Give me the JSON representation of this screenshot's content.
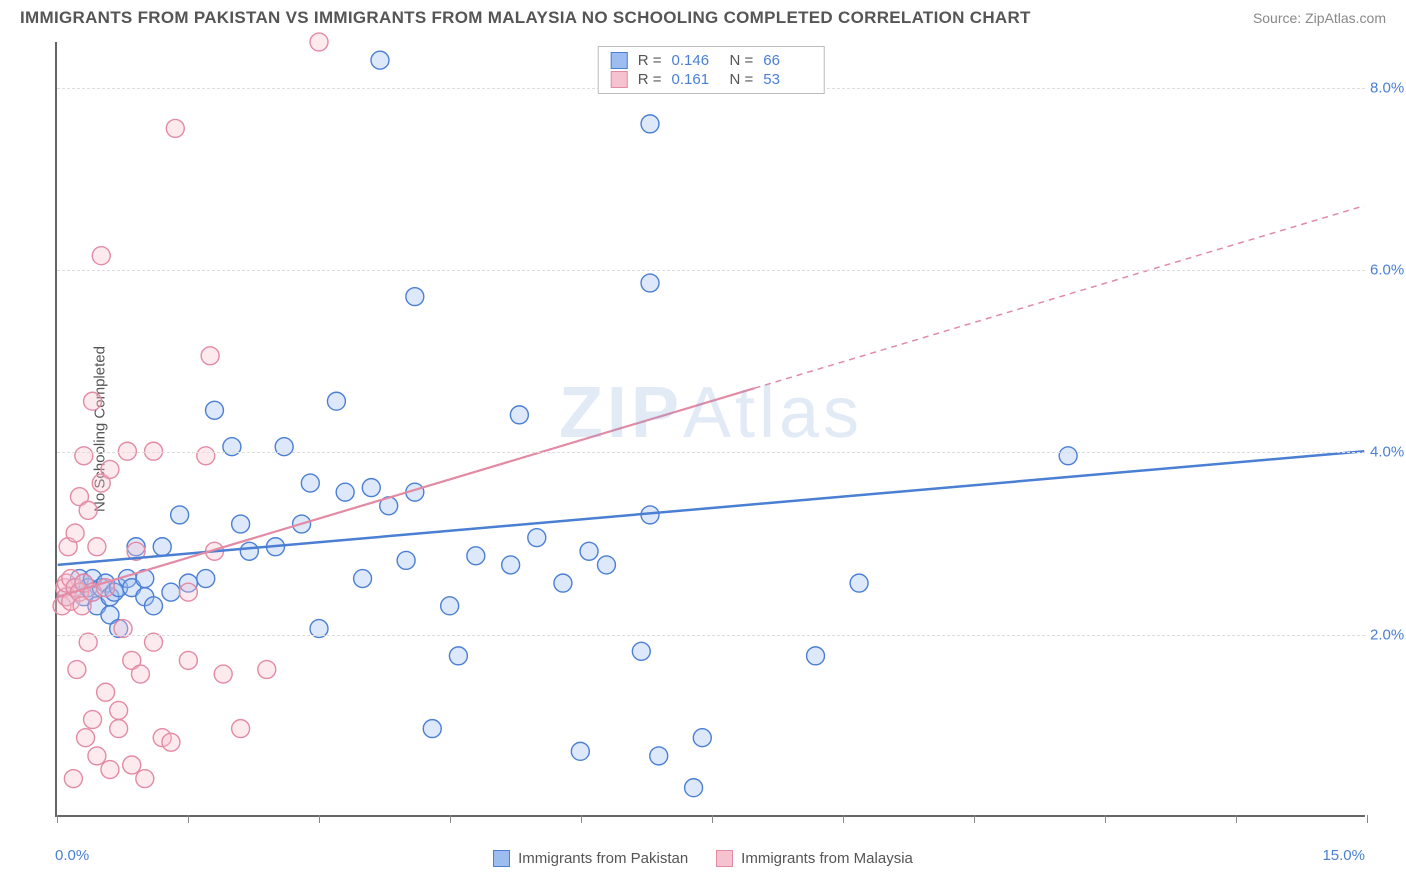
{
  "header": {
    "title": "IMMIGRANTS FROM PAKISTAN VS IMMIGRANTS FROM MALAYSIA NO SCHOOLING COMPLETED CORRELATION CHART",
    "source": "Source: ZipAtlas.com"
  },
  "watermark": {
    "prefix": "ZIP",
    "suffix": "Atlas"
  },
  "chart": {
    "type": "scatter",
    "y_axis_title": "No Schooling Completed",
    "xlim": [
      0,
      15
    ],
    "ylim": [
      0,
      8.5
    ],
    "x_ticks_minor_step": 1.5,
    "x_tick_labels": {
      "min": "0.0%",
      "max": "15.0%"
    },
    "y_gridlines": [
      2.0,
      4.0,
      6.0,
      8.0
    ],
    "y_tick_labels": [
      "2.0%",
      "4.0%",
      "6.0%",
      "8.0%"
    ],
    "background_color": "#ffffff",
    "grid_color": "#dddddd",
    "axis_color": "#666666",
    "label_color": "#4a7fd4",
    "marker_radius": 9,
    "marker_fill_opacity": 0.35,
    "marker_stroke_width": 1.4,
    "series": [
      {
        "key": "pakistan",
        "label": "Immigrants from Pakistan",
        "color_stroke": "#4a7fd4",
        "color_fill": "#9dbdf0",
        "R": "0.146",
        "N": "66",
        "trend": {
          "x1": 0,
          "y1": 2.75,
          "x2": 15,
          "y2": 4.0,
          "dash_from_x": null
        },
        "points": [
          [
            0.1,
            2.4
          ],
          [
            0.2,
            2.5
          ],
          [
            0.25,
            2.6
          ],
          [
            0.3,
            2.4
          ],
          [
            0.3,
            2.55
          ],
          [
            0.35,
            2.5
          ],
          [
            0.4,
            2.45
          ],
          [
            0.4,
            2.6
          ],
          [
            0.45,
            2.3
          ],
          [
            0.5,
            2.5
          ],
          [
            0.55,
            2.55
          ],
          [
            0.6,
            2.4
          ],
          [
            0.6,
            2.2
          ],
          [
            0.65,
            2.45
          ],
          [
            0.7,
            2.5
          ],
          [
            0.7,
            2.05
          ],
          [
            0.8,
            2.6
          ],
          [
            0.85,
            2.5
          ],
          [
            0.9,
            2.95
          ],
          [
            1.0,
            2.4
          ],
          [
            1.0,
            2.6
          ],
          [
            1.1,
            2.3
          ],
          [
            1.2,
            2.95
          ],
          [
            1.3,
            2.45
          ],
          [
            1.4,
            3.3
          ],
          [
            1.5,
            2.55
          ],
          [
            1.7,
            2.6
          ],
          [
            1.8,
            4.45
          ],
          [
            2.0,
            4.05
          ],
          [
            2.1,
            3.2
          ],
          [
            2.2,
            2.9
          ],
          [
            2.5,
            2.95
          ],
          [
            2.6,
            4.05
          ],
          [
            2.8,
            3.2
          ],
          [
            2.9,
            3.65
          ],
          [
            3.0,
            2.05
          ],
          [
            3.2,
            4.55
          ],
          [
            3.3,
            3.55
          ],
          [
            3.5,
            2.6
          ],
          [
            3.6,
            3.6
          ],
          [
            3.7,
            8.3
          ],
          [
            3.8,
            3.4
          ],
          [
            4.0,
            2.8
          ],
          [
            4.1,
            3.55
          ],
          [
            4.1,
            5.7
          ],
          [
            4.3,
            0.95
          ],
          [
            4.5,
            2.3
          ],
          [
            4.6,
            1.75
          ],
          [
            4.8,
            2.85
          ],
          [
            5.2,
            2.75
          ],
          [
            5.3,
            4.4
          ],
          [
            5.5,
            3.05
          ],
          [
            5.8,
            2.55
          ],
          [
            6.0,
            0.7
          ],
          [
            6.1,
            2.9
          ],
          [
            6.3,
            2.75
          ],
          [
            6.7,
            1.8
          ],
          [
            6.8,
            7.6
          ],
          [
            6.8,
            5.85
          ],
          [
            6.8,
            3.3
          ],
          [
            6.9,
            0.65
          ],
          [
            7.3,
            0.3
          ],
          [
            7.4,
            0.85
          ],
          [
            8.7,
            1.75
          ],
          [
            9.2,
            2.55
          ],
          [
            11.6,
            3.95
          ]
        ]
      },
      {
        "key": "malaysia",
        "label": "Immigrants from Malaysia",
        "color_stroke": "#e38aa4",
        "color_fill": "#f6c2d0",
        "R": "0.161",
        "N": "53",
        "trend": {
          "x1": 0,
          "y1": 2.4,
          "x2": 15,
          "y2": 6.7,
          "dash_from_x": 8.0
        },
        "points": [
          [
            0.05,
            2.3
          ],
          [
            0.08,
            2.5
          ],
          [
            0.1,
            2.4
          ],
          [
            0.1,
            2.55
          ],
          [
            0.12,
            2.95
          ],
          [
            0.15,
            2.35
          ],
          [
            0.15,
            2.6
          ],
          [
            0.18,
            0.4
          ],
          [
            0.2,
            2.5
          ],
          [
            0.2,
            3.1
          ],
          [
            0.22,
            1.6
          ],
          [
            0.25,
            2.45
          ],
          [
            0.25,
            3.5
          ],
          [
            0.28,
            2.3
          ],
          [
            0.3,
            3.95
          ],
          [
            0.3,
            2.55
          ],
          [
            0.32,
            0.85
          ],
          [
            0.35,
            1.9
          ],
          [
            0.35,
            3.35
          ],
          [
            0.4,
            2.45
          ],
          [
            0.4,
            4.55
          ],
          [
            0.4,
            1.05
          ],
          [
            0.45,
            2.95
          ],
          [
            0.45,
            0.65
          ],
          [
            0.5,
            6.15
          ],
          [
            0.5,
            3.65
          ],
          [
            0.55,
            2.5
          ],
          [
            0.55,
            1.35
          ],
          [
            0.6,
            0.5
          ],
          [
            0.6,
            3.8
          ],
          [
            0.7,
            1.15
          ],
          [
            0.7,
            0.95
          ],
          [
            0.75,
            2.05
          ],
          [
            0.8,
            4.0
          ],
          [
            0.85,
            1.7
          ],
          [
            0.85,
            0.55
          ],
          [
            0.9,
            2.9
          ],
          [
            0.95,
            1.55
          ],
          [
            1.0,
            0.4
          ],
          [
            1.1,
            4.0
          ],
          [
            1.1,
            1.9
          ],
          [
            1.2,
            0.85
          ],
          [
            1.3,
            0.8
          ],
          [
            1.35,
            7.55
          ],
          [
            1.5,
            2.45
          ],
          [
            1.5,
            1.7
          ],
          [
            1.7,
            3.95
          ],
          [
            1.75,
            5.05
          ],
          [
            1.8,
            2.9
          ],
          [
            1.9,
            1.55
          ],
          [
            2.1,
            0.95
          ],
          [
            2.4,
            1.6
          ],
          [
            3.0,
            8.5
          ]
        ]
      }
    ]
  },
  "bottom_legend": {
    "items": [
      {
        "label_key": "chart.series.0.label",
        "stroke": "#4a7fd4",
        "fill": "#9dbdf0"
      },
      {
        "label_key": "chart.series.1.label",
        "stroke": "#e38aa4",
        "fill": "#f6c2d0"
      }
    ]
  }
}
